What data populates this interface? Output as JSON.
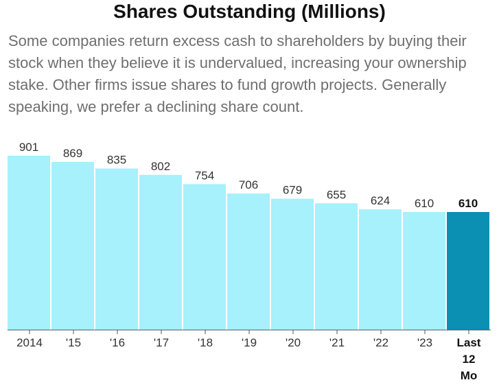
{
  "header": {
    "title": "Shares Outstanding (Millions)",
    "subtitle": "Some companies return excess cash to shareholders by buying their stock when they believe it is undervalued, increasing your ownership stake. Other firms issue shares to fund growth projects. Generally speaking, we prefer a declining share count."
  },
  "colors": {
    "bar": "#a6f1fb",
    "highlight_bar": "#0b8fb3",
    "label_text": "#333333",
    "axis": "#555555"
  },
  "chart_data": {
    "type": "bar",
    "title": "Shares Outstanding (Millions)",
    "xlabel": "",
    "ylabel": "",
    "categories": [
      "2014",
      "'15",
      "'16",
      "'17",
      "'18",
      "'19",
      "'20",
      "'21",
      "'22",
      "'23",
      "Last 12 Mo"
    ],
    "values": [
      901,
      869,
      835,
      802,
      754,
      706,
      679,
      655,
      624,
      610,
      610
    ],
    "value_labels": [
      "901",
      "869",
      "835",
      "802",
      "754",
      "706",
      "679",
      "655",
      "624",
      "610",
      "610"
    ],
    "highlight_index": 10,
    "ylim": [
      0,
      901
    ],
    "grid": false,
    "legend": "none"
  }
}
